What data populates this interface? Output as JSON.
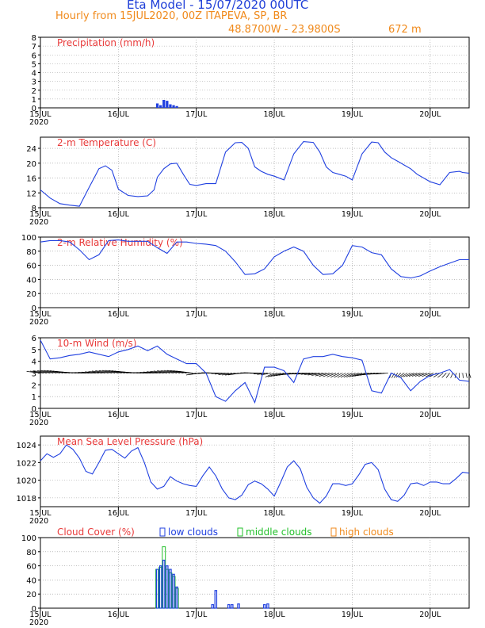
{
  "header": {
    "title": "Eta Model - 15/07/2020 00UTC",
    "subtitle": "Hourly from 15JUL2020, 00Z   ITAPEVA, SP, BR",
    "coords": "48.8700W - 23.9800S",
    "elevation": "672  m"
  },
  "colors": {
    "title": "#1f3fd8",
    "subtitle": "#f08a1c",
    "panel_title": "#e83a3a",
    "series_line": "#2040e0",
    "low_clouds": "#2040e0",
    "middle_clouds": "#22c02a",
    "high_clouds": "#f08a1c",
    "wind_barb": "#000000",
    "grid": "#999999"
  },
  "x_axis": {
    "ticks": [
      "15JUL",
      "16JUL",
      "17JUL",
      "18JUL",
      "19JUL",
      "20JUL"
    ],
    "year_label": "2020",
    "hours_range": [
      0,
      132
    ]
  },
  "chart_data": [
    {
      "type": "bar",
      "title": "Precipitation (mm/h)",
      "ylim": [
        0,
        8
      ],
      "yticks": [
        0,
        1,
        2,
        3,
        4,
        5,
        6,
        7,
        8
      ],
      "x": [
        36,
        37,
        38,
        39,
        40,
        41,
        42
      ],
      "values": [
        0.5,
        0.3,
        0.9,
        0.8,
        0.4,
        0.3,
        0.2
      ]
    },
    {
      "type": "line",
      "title": "2-m Temperature (C)",
      "ylim": [
        8,
        27
      ],
      "yticks": [
        8,
        12,
        16,
        20,
        24
      ],
      "x": [
        0,
        3,
        6,
        9,
        12,
        15,
        17,
        18,
        20,
        22,
        24,
        27,
        30,
        33,
        35,
        36,
        38,
        40,
        42,
        44,
        46,
        48,
        51,
        54,
        57,
        60,
        62,
        64,
        66,
        68,
        70,
        72,
        75,
        78,
        81,
        84,
        86,
        88,
        90,
        92,
        94,
        96,
        99,
        102,
        104,
        106,
        108,
        110,
        112,
        114,
        116,
        118,
        120,
        123,
        126,
        129,
        130,
        132
      ],
      "values": [
        12.8,
        10.6,
        9.1,
        8.7,
        8.4,
        13.5,
        16.8,
        18.5,
        19.3,
        18.1,
        13.0,
        11.3,
        11.0,
        11.2,
        12.8,
        16.2,
        18.5,
        19.8,
        20.0,
        17.0,
        14.3,
        14.0,
        14.5,
        14.5,
        23.0,
        25.5,
        25.6,
        24.0,
        19.0,
        17.8,
        17.0,
        16.5,
        15.5,
        22.5,
        25.8,
        25.6,
        23.0,
        19.0,
        17.5,
        17.0,
        16.5,
        15.5,
        22.5,
        25.7,
        25.5,
        23.0,
        21.5,
        20.5,
        19.5,
        18.5,
        17.0,
        16.0,
        15.0,
        14.2,
        17.5,
        17.8,
        17.5,
        17.3
      ]
    },
    {
      "type": "line",
      "title": "2-m Relative Humidity (%)",
      "ylim": [
        0,
        100
      ],
      "yticks": [
        0,
        20,
        40,
        60,
        80,
        100
      ],
      "x": [
        0,
        3,
        6,
        9,
        12,
        15,
        18,
        21,
        24,
        27,
        30,
        33,
        36,
        39,
        42,
        45,
        48,
        51,
        54,
        57,
        60,
        63,
        66,
        69,
        72,
        75,
        78,
        81,
        84,
        87,
        90,
        93,
        96,
        99,
        102,
        105,
        108,
        111,
        114,
        117,
        120,
        123,
        126,
        129,
        132
      ],
      "values": [
        93,
        95,
        95,
        93,
        82,
        68,
        75,
        95,
        96,
        94,
        94,
        94,
        85,
        77,
        93,
        93,
        91,
        90,
        88,
        80,
        65,
        47,
        48,
        55,
        72,
        80,
        86,
        80,
        60,
        47,
        48,
        60,
        88,
        86,
        78,
        75,
        55,
        44,
        42,
        45,
        52,
        58,
        63,
        68,
        68
      ]
    },
    {
      "type": "line",
      "title": "10-m Wind (m/s)",
      "ylim": [
        0,
        6
      ],
      "yticks": [
        0,
        1,
        2,
        3,
        4,
        5,
        6
      ],
      "x": [
        0,
        3,
        6,
        9,
        12,
        15,
        18,
        21,
        24,
        27,
        30,
        33,
        36,
        39,
        42,
        45,
        48,
        51,
        54,
        57,
        60,
        63,
        66,
        69,
        72,
        75,
        78,
        81,
        84,
        87,
        90,
        93,
        96,
        99,
        102,
        105,
        108,
        111,
        114,
        117,
        120,
        123,
        126,
        129,
        132
      ],
      "values": [
        5.8,
        4.2,
        4.3,
        4.5,
        4.6,
        4.8,
        4.6,
        4.4,
        4.8,
        5.0,
        5.3,
        4.9,
        5.3,
        4.6,
        4.2,
        3.8,
        3.8,
        3.0,
        1.0,
        0.6,
        1.5,
        2.2,
        0.5,
        3.5,
        3.5,
        3.2,
        2.2,
        4.2,
        4.4,
        4.4,
        4.6,
        4.4,
        4.3,
        4.1,
        1.5,
        1.3,
        3.0,
        2.6,
        1.5,
        2.3,
        2.8,
        3.0,
        3.3,
        2.4,
        2.3
      ]
    },
    {
      "type": "line",
      "title": "Mean Sea Level Pressure (hPa)",
      "ylim": [
        1017,
        1025
      ],
      "yticks": [
        1018,
        1020,
        1022,
        1024
      ],
      "x": [
        0,
        2,
        4,
        6,
        8,
        10,
        12,
        14,
        16,
        18,
        20,
        22,
        24,
        26,
        28,
        30,
        32,
        34,
        36,
        38,
        40,
        42,
        44,
        46,
        48,
        50,
        52,
        54,
        56,
        58,
        60,
        62,
        64,
        66,
        68,
        70,
        72,
        74,
        76,
        78,
        80,
        82,
        84,
        86,
        88,
        90,
        92,
        94,
        96,
        98,
        100,
        102,
        104,
        106,
        108,
        110,
        112,
        114,
        116,
        118,
        120,
        122,
        124,
        126,
        128,
        130,
        132
      ],
      "values": [
        1022.2,
        1023.0,
        1022.6,
        1023.0,
        1024.0,
        1023.5,
        1022.5,
        1021.0,
        1020.7,
        1022.0,
        1023.4,
        1023.5,
        1023.0,
        1022.5,
        1023.3,
        1023.7,
        1022.0,
        1019.8,
        1019.0,
        1019.3,
        1020.4,
        1019.9,
        1019.6,
        1019.4,
        1019.3,
        1020.5,
        1021.5,
        1020.5,
        1019.0,
        1018.0,
        1017.8,
        1018.3,
        1019.5,
        1019.9,
        1019.6,
        1019.0,
        1018.2,
        1019.8,
        1021.5,
        1022.2,
        1021.3,
        1019.2,
        1018.0,
        1017.4,
        1018.2,
        1019.6,
        1019.6,
        1019.4,
        1019.6,
        1020.6,
        1021.8,
        1022.0,
        1021.2,
        1019.0,
        1017.8,
        1017.6,
        1018.3,
        1019.6,
        1019.7,
        1019.4,
        1019.8,
        1019.8,
        1019.6,
        1019.6,
        1020.2,
        1020.9,
        1020.8
      ]
    },
    {
      "type": "bar",
      "title": "Cloud Cover (%)",
      "ylim": [
        0,
        100
      ],
      "yticks": [
        0,
        20,
        40,
        60,
        80,
        100
      ],
      "x": [
        36,
        37,
        38,
        39,
        40,
        41,
        42,
        53,
        54,
        58,
        59,
        61,
        69,
        70
      ],
      "series": [
        {
          "name": "low clouds",
          "values": [
            55,
            60,
            68,
            60,
            55,
            48,
            30,
            5,
            25,
            5,
            5,
            6,
            5,
            6
          ]
        },
        {
          "name": "middle clouds",
          "values": [
            55,
            58,
            87,
            55,
            50,
            45,
            28,
            0,
            0,
            0,
            0,
            0,
            0,
            0
          ]
        },
        {
          "name": "high clouds",
          "values": [
            0,
            0,
            0,
            0,
            0,
            0,
            0,
            0,
            0,
            0,
            0,
            0,
            0,
            0
          ]
        }
      ]
    }
  ]
}
